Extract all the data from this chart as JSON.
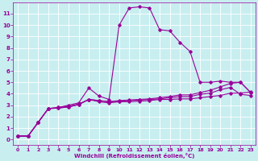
{
  "xlabel": "Windchill (Refroidissement éolien,°C)",
  "bg_color": "#c8eef0",
  "line_color": "#990099",
  "grid_color": "#ffffff",
  "xlim": [
    -0.5,
    23.5
  ],
  "ylim": [
    -0.5,
    12.0
  ],
  "xticks": [
    0,
    1,
    2,
    3,
    4,
    5,
    6,
    7,
    8,
    9,
    10,
    11,
    12,
    13,
    14,
    15,
    16,
    17,
    18,
    19,
    20,
    21,
    22,
    23
  ],
  "yticks": [
    0,
    1,
    2,
    3,
    4,
    5,
    6,
    7,
    8,
    9,
    10,
    11
  ],
  "line1_x": [
    0,
    1,
    2,
    3,
    4,
    5,
    6,
    7,
    8,
    9,
    10,
    11,
    12,
    13,
    14,
    15,
    16,
    17,
    18,
    19,
    20,
    21,
    22,
    23
  ],
  "line1_y": [
    0.3,
    0.3,
    1.5,
    2.7,
    2.8,
    2.9,
    3.1,
    3.5,
    3.3,
    3.2,
    3.3,
    3.3,
    3.35,
    3.4,
    3.5,
    3.5,
    3.55,
    3.55,
    3.65,
    3.75,
    3.85,
    4.05,
    4.05,
    4.15
  ],
  "line2_x": [
    0,
    1,
    2,
    3,
    4,
    5,
    6,
    7,
    8,
    9,
    10,
    11,
    12,
    13,
    14,
    15,
    16,
    17,
    18,
    19,
    20,
    21,
    22,
    23
  ],
  "line2_y": [
    0.3,
    0.3,
    1.5,
    2.7,
    2.8,
    3.0,
    3.2,
    4.5,
    3.8,
    3.5,
    10.0,
    11.5,
    11.6,
    11.5,
    9.6,
    9.5,
    8.5,
    7.7,
    5.0,
    5.0,
    5.1,
    5.0,
    5.0,
    4.1
  ],
  "line3_x": [
    0,
    1,
    2,
    3,
    4,
    5,
    6,
    7,
    8,
    9,
    10,
    11,
    12,
    13,
    14,
    15,
    16,
    17,
    18,
    19,
    20,
    21,
    22,
    23
  ],
  "line3_y": [
    0.3,
    0.3,
    1.5,
    2.7,
    2.75,
    2.85,
    3.05,
    3.5,
    3.4,
    3.3,
    3.4,
    3.45,
    3.5,
    3.55,
    3.65,
    3.75,
    3.9,
    3.9,
    4.1,
    4.3,
    4.6,
    4.9,
    5.0,
    4.1
  ],
  "line4_x": [
    0,
    1,
    2,
    3,
    4,
    5,
    6,
    7,
    8,
    9,
    10,
    11,
    12,
    13,
    14,
    15,
    16,
    17,
    18,
    19,
    20,
    21,
    22,
    23
  ],
  "line4_y": [
    0.3,
    0.3,
    1.5,
    2.7,
    2.75,
    2.85,
    3.05,
    3.5,
    3.4,
    3.3,
    3.35,
    3.4,
    3.45,
    3.5,
    3.55,
    3.65,
    3.75,
    3.75,
    3.95,
    4.05,
    4.35,
    4.55,
    3.95,
    3.85
  ]
}
